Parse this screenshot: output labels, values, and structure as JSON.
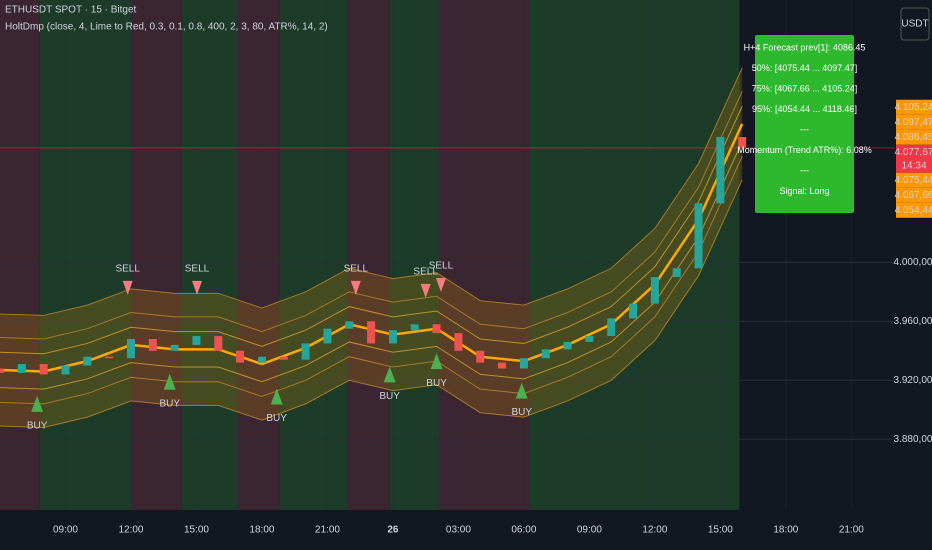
{
  "header": {
    "symbol": "ETHUSDT SPOT · 15 · Bitget",
    "indicator": "HoltDmp (close, 4, Lime to Red, 0.3, 0.1, 0.8, 400, 2, 3, 80, ATR%, 14, 2)",
    "currency": "USDT"
  },
  "info_box": {
    "color": "#2eb82e",
    "lines": [
      "H+4 Forecast prev[1]: 4086.45",
      "50%: [4075.44 ... 4097.47]",
      "75%: [4067.66 ... 4105.24]",
      "95%: [4054.44 ... 4118.46]",
      "---",
      "Momentum (Trend ATR%): 6.08%",
      "---",
      "Signal: Long"
    ]
  },
  "chart_data": {
    "type": "candlestick",
    "xlim": [
      0,
      164
    ],
    "ylim": [
      3832,
      4178
    ],
    "grid": true,
    "xticks": [
      {
        "value": 12,
        "label": "09:00"
      },
      {
        "value": 24,
        "label": "12:00"
      },
      {
        "value": 36,
        "label": "15:00"
      },
      {
        "value": 48,
        "label": "18:00"
      },
      {
        "value": 60,
        "label": "21:00"
      },
      {
        "value": 72,
        "label": "26"
      },
      {
        "value": 84,
        "label": "03:00"
      },
      {
        "value": 96,
        "label": "06:00"
      },
      {
        "value": 108,
        "label": "09:00"
      },
      {
        "value": 120,
        "label": "12:00"
      },
      {
        "value": 132,
        "label": "15:00"
      },
      {
        "value": 144,
        "label": "18:00"
      },
      {
        "value": 156,
        "label": "21:00"
      }
    ],
    "yticks": [
      {
        "value": 3880,
        "label": "3.880,00"
      },
      {
        "value": 3920,
        "label": "3.920,00"
      },
      {
        "value": 3960,
        "label": "3.960,00"
      },
      {
        "value": 4000,
        "label": "4.000,00"
      }
    ],
    "up_color": "#26a69a",
    "down_color": "#ef5350",
    "x": [
      0,
      4,
      8,
      12,
      16,
      20,
      24,
      28,
      32,
      36,
      40,
      44,
      48,
      52,
      56,
      60,
      64,
      68,
      72,
      76,
      80,
      84,
      88,
      92,
      96,
      100,
      104,
      108,
      112,
      116,
      120,
      124,
      128,
      132,
      136
    ],
    "open": [
      3928,
      3925,
      3931,
      3924,
      3930,
      3936,
      3935,
      3948,
      3940,
      3944,
      3950,
      3940,
      3932,
      3936,
      3934,
      3945,
      3955,
      3960,
      3945,
      3954,
      3958,
      3952,
      3940,
      3932,
      3928,
      3935,
      3941,
      3946,
      3950,
      3962,
      3972,
      3990,
      3996,
      4040,
      4085
    ],
    "close": [
      3925,
      3931,
      3924,
      3930,
      3936,
      3935,
      3948,
      3940,
      3944,
      3950,
      3940,
      3932,
      3936,
      3934,
      3945,
      3955,
      3960,
      3945,
      3954,
      3958,
      3952,
      3940,
      3932,
      3928,
      3935,
      3941,
      3946,
      3950,
      3962,
      3972,
      3990,
      3996,
      4040,
      4085,
      4078
    ],
    "regions": [
      {
        "start": 0,
        "end": 7.3,
        "color": "#3a2530"
      },
      {
        "start": 7.3,
        "end": 24.2,
        "color": "#1c3b28"
      },
      {
        "start": 24.2,
        "end": 33.3,
        "color": "#3a2530"
      },
      {
        "start": 33.3,
        "end": 43.6,
        "color": "#1c3b28"
      },
      {
        "start": 43.6,
        "end": 51.3,
        "color": "#3a2530"
      },
      {
        "start": 51.3,
        "end": 63.7,
        "color": "#1c3b28"
      },
      {
        "start": 63.7,
        "end": 71.4,
        "color": "#3a2530"
      },
      {
        "start": 71.4,
        "end": 80.6,
        "color": "#1c3b28"
      },
      {
        "start": 80.6,
        "end": 97,
        "color": "#3a2530"
      },
      {
        "start": 97,
        "end": 135.5,
        "color": "#1c3b28"
      }
    ],
    "bands": {
      "x": [
        0,
        8,
        16,
        24,
        32,
        40,
        48,
        56,
        64,
        72,
        80,
        88,
        96,
        104,
        112,
        120,
        128,
        136
      ],
      "fill": "#b57a12",
      "series": [
        {
          "color": "#a67a28",
          "values": [
            3889,
            3888,
            3895,
            3906,
            3903,
            3903,
            3893,
            3904,
            3920,
            3913,
            3917,
            3898,
            3895,
            3906,
            3920,
            3947,
            3991,
            4056
          ]
        },
        {
          "color": "#a67a28",
          "values": [
            3905,
            3904,
            3911,
            3922,
            3919,
            3919,
            3909,
            3920,
            3936,
            3929,
            3933,
            3914,
            3911,
            3922,
            3936,
            3963,
            4007,
            4072
          ]
        },
        {
          "color": "#c0902a",
          "values": [
            3915,
            3914,
            3921,
            3932,
            3929,
            3929,
            3919,
            3930,
            3946,
            3939,
            3943,
            3924,
            3921,
            3932,
            3946,
            3973,
            4017,
            4082
          ]
        },
        {
          "color": "#ffa800",
          "values": [
            3927,
            3926,
            3933,
            3944,
            3941,
            3941,
            3931,
            3942,
            3958,
            3951,
            3955,
            3936,
            3933,
            3944,
            3958,
            3985,
            4029,
            4094
          ]
        },
        {
          "color": "#c0902a",
          "values": [
            3939,
            3938,
            3945,
            3956,
            3953,
            3953,
            3943,
            3954,
            3970,
            3963,
            3967,
            3948,
            3945,
            3956,
            3970,
            3997,
            4041,
            4106
          ]
        },
        {
          "color": "#a67a28",
          "values": [
            3949,
            3948,
            3955,
            3966,
            3963,
            3963,
            3953,
            3964,
            3980,
            3973,
            3977,
            3958,
            3955,
            3966,
            3980,
            4007,
            4051,
            4116
          ]
        },
        {
          "color": "#a67a28",
          "values": [
            3965,
            3964,
            3971,
            3982,
            3979,
            3979,
            3969,
            3980,
            3996,
            3989,
            3993,
            3974,
            3971,
            3982,
            3996,
            4023,
            4067,
            4132
          ]
        }
      ]
    },
    "signals": [
      {
        "x": 23.4,
        "value": 3982,
        "label": "SELL",
        "color": "#f77c80"
      },
      {
        "x": 36.1,
        "value": 3982,
        "label": "SELL",
        "color": "#f77c80"
      },
      {
        "x": 65.2,
        "value": 3982,
        "label": "SELL",
        "color": "#f77c80"
      },
      {
        "x": 78,
        "value": 3980,
        "label": "SELL",
        "color": "#f77c80"
      },
      {
        "x": 80.8,
        "value": 3984,
        "label": "SELL",
        "color": "#f77c80"
      },
      {
        "x": 6.8,
        "value": 3904,
        "label": "BUY",
        "color": "#4caf50"
      },
      {
        "x": 31.1,
        "value": 3919,
        "label": "BUY",
        "color": "#4caf50"
      },
      {
        "x": 50.7,
        "value": 3909,
        "label": "BUY",
        "color": "#4caf50"
      },
      {
        "x": 71.4,
        "value": 3924,
        "label": "BUY",
        "color": "#4caf50"
      },
      {
        "x": 80,
        "value": 3933,
        "label": "BUY",
        "color": "#4caf50"
      },
      {
        "x": 95.6,
        "value": 3913,
        "label": "BUY",
        "color": "#4caf50"
      }
    ],
    "price_line": {
      "value": 4077.67,
      "color": "#f23645"
    },
    "price_tags": [
      {
        "value": 4105.24,
        "label": "4.105,24",
        "color": "#ff9800"
      },
      {
        "value": 4097.47,
        "label": "4.097,47",
        "color": "#ff9800"
      },
      {
        "value": 4086.45,
        "label": "4.086,45",
        "color": "#ff9800"
      },
      {
        "value": 4077.67,
        "label": "4.077,67",
        "color": "#f23645",
        "countdown": "14:34"
      },
      {
        "value": 4075.44,
        "label": "4.075,44",
        "color": "#ff9800"
      },
      {
        "value": 4067.66,
        "label": "4.067,66",
        "color": "#ff9800"
      },
      {
        "value": 4054.44,
        "label": "4.054,44",
        "color": "#ff9800"
      }
    ]
  }
}
